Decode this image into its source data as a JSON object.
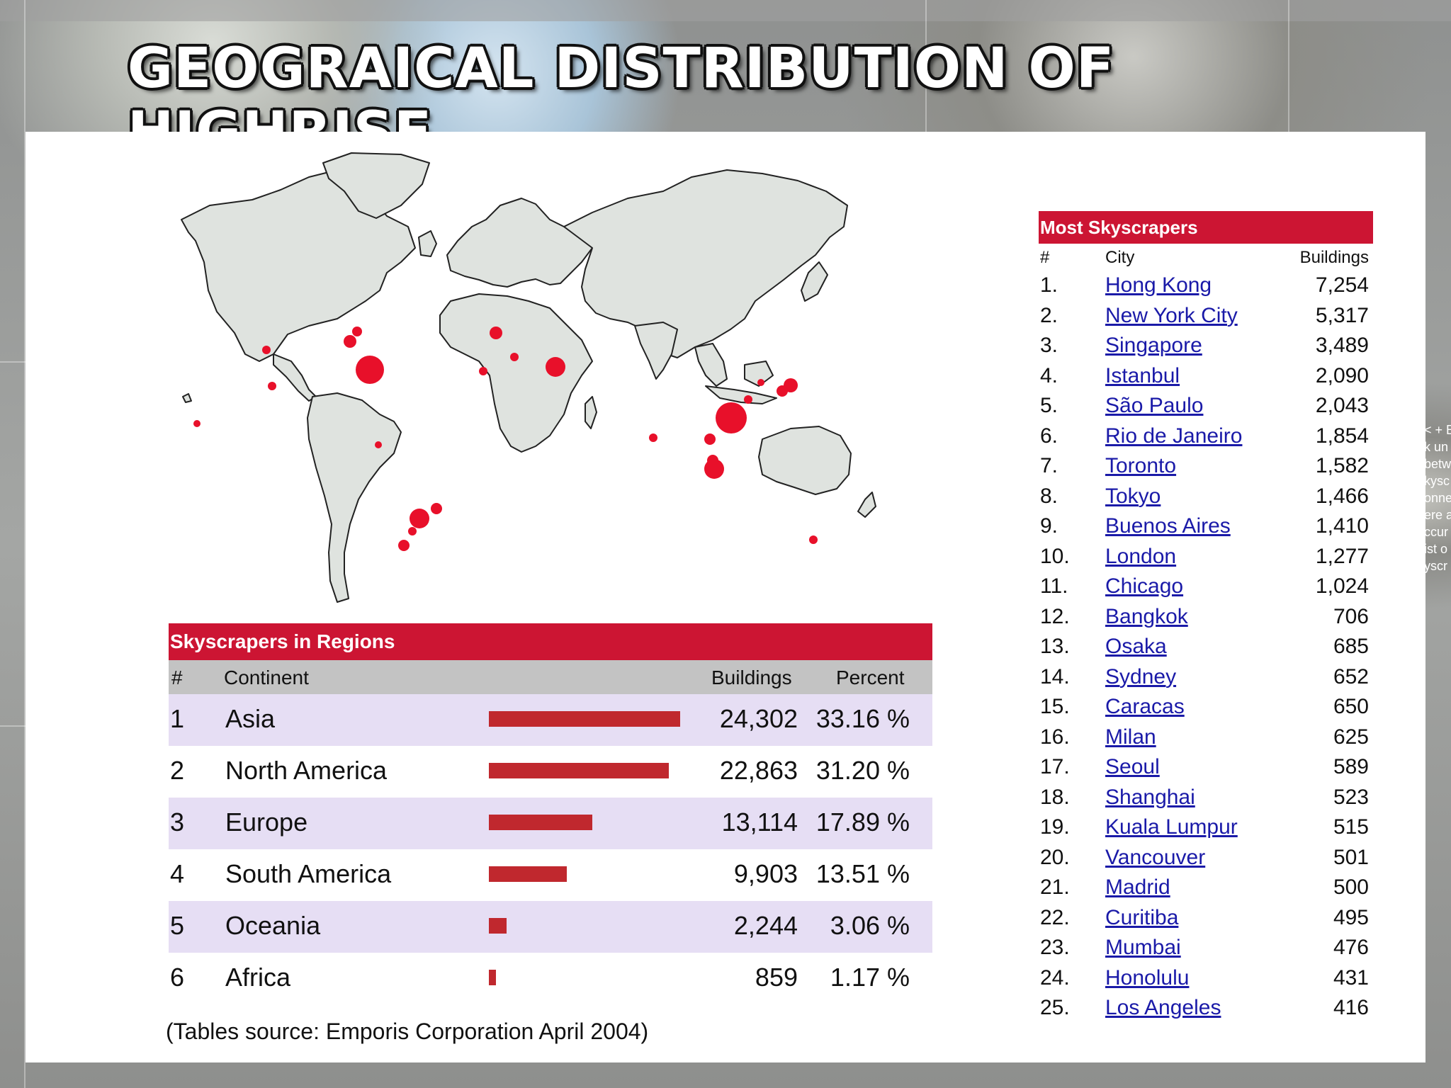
{
  "slide": {
    "title": "GEOGRAICAL DISTRIBUTION OF HIGHRISE"
  },
  "regions_table": {
    "title": "Skyscrapers in Regions",
    "columns": [
      "#",
      "Continent",
      "Buildings",
      "Percent"
    ],
    "rows": [
      {
        "rank": "1",
        "continent": "Asia",
        "buildings": "24,302",
        "percent": "33.16 %",
        "share": 0.3316
      },
      {
        "rank": "2",
        "continent": "North America",
        "buildings": "22,863",
        "percent": "31.20 %",
        "share": 0.312
      },
      {
        "rank": "3",
        "continent": "Europe",
        "buildings": "13,114",
        "percent": "17.89 %",
        "share": 0.1789
      },
      {
        "rank": "4",
        "continent": "South America",
        "buildings": "9,903",
        "percent": "13.51 %",
        "share": 0.1351
      },
      {
        "rank": "5",
        "continent": "Oceania",
        "buildings": "2,244",
        "percent": "3.06 %",
        "share": 0.0306
      },
      {
        "rank": "6",
        "continent": "Africa",
        "buildings": "859",
        "percent": "1.17 %",
        "share": 0.0117
      }
    ],
    "bar_color": "#c0282e",
    "header_color": "#cc1533"
  },
  "source_note": "(Tables source: Emporis Corporation April 2004)",
  "cities_table": {
    "title": "Most Skyscrapers",
    "columns": [
      "#",
      "City",
      "Buildings"
    ],
    "rows": [
      {
        "rank": "1.",
        "city": "Hong Kong",
        "buildings": "7,254"
      },
      {
        "rank": "2.",
        "city": "New York City",
        "buildings": "5,317"
      },
      {
        "rank": "3.",
        "city": "Singapore",
        "buildings": "3,489"
      },
      {
        "rank": "4.",
        "city": "Istanbul",
        "buildings": "2,090"
      },
      {
        "rank": "5.",
        "city": "São Paulo",
        "buildings": "2,043"
      },
      {
        "rank": "6.",
        "city": "Rio de Janeiro",
        "buildings": "1,854"
      },
      {
        "rank": "7.",
        "city": "Toronto",
        "buildings": "1,582"
      },
      {
        "rank": "8.",
        "city": "Tokyo",
        "buildings": "1,466"
      },
      {
        "rank": "9.",
        "city": "Buenos Aires",
        "buildings": "1,410"
      },
      {
        "rank": "10.",
        "city": "London",
        "buildings": "1,277"
      },
      {
        "rank": "11.",
        "city": "Chicago",
        "buildings": "1,024"
      },
      {
        "rank": "12.",
        "city": "Bangkok",
        "buildings": "706"
      },
      {
        "rank": "13.",
        "city": "Osaka",
        "buildings": "685"
      },
      {
        "rank": "14.",
        "city": "Sydney",
        "buildings": "652"
      },
      {
        "rank": "15.",
        "city": "Caracas",
        "buildings": "650"
      },
      {
        "rank": "16.",
        "city": "Milan",
        "buildings": "625"
      },
      {
        "rank": "17.",
        "city": "Seoul",
        "buildings": "589"
      },
      {
        "rank": "18.",
        "city": "Shanghai",
        "buildings": "523"
      },
      {
        "rank": "19.",
        "city": "Kuala Lumpur",
        "buildings": "515"
      },
      {
        "rank": "20.",
        "city": "Vancouver",
        "buildings": "501"
      },
      {
        "rank": "21.",
        "city": "Madrid",
        "buildings": "500"
      },
      {
        "rank": "22.",
        "city": "Curitiba",
        "buildings": "495"
      },
      {
        "rank": "23.",
        "city": "Mumbai",
        "buildings": "476"
      },
      {
        "rank": "24.",
        "city": "Honolulu",
        "buildings": "431"
      },
      {
        "rank": "25.",
        "city": "Los Angeles",
        "buildings": "416"
      }
    ],
    "link_color": "#1a1aa8"
  },
  "map": {
    "land_color": "#dfe3df",
    "marker_color": "#e8102a"
  },
  "edge_fragments": [
    "< + E",
    "k un",
    "betw",
    "kysc",
    "onne",
    "ere a",
    "ccur",
    "ist o",
    "yscr"
  ]
}
